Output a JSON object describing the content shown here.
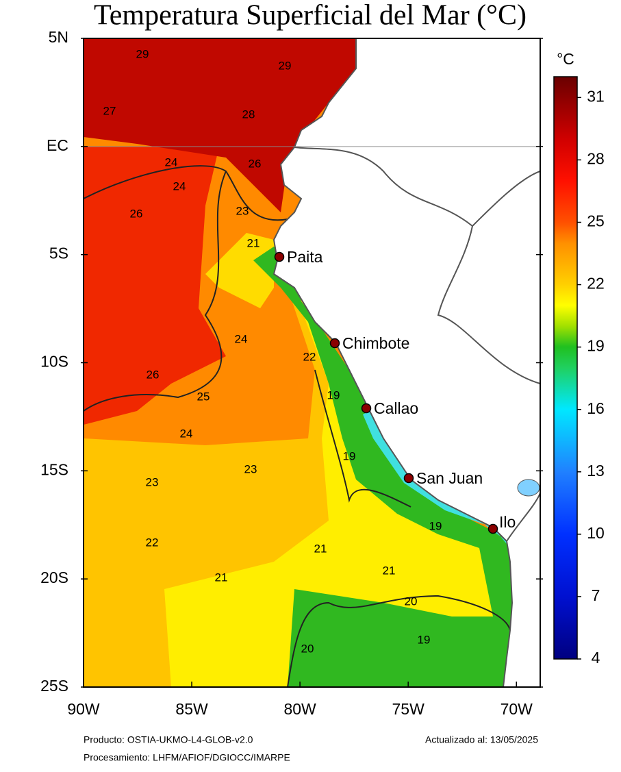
{
  "title": "Temperatura Superficial del Mar (°C)",
  "map": {
    "xlim": [
      -90,
      -68.9
    ],
    "ylim": [
      -25,
      5
    ],
    "xticks": [
      {
        "value": -90,
        "label": "90W"
      },
      {
        "value": -85,
        "label": "85W"
      },
      {
        "value": -80,
        "label": "80W"
      },
      {
        "value": -75,
        "label": "75W"
      },
      {
        "value": -70,
        "label": "70W"
      }
    ],
    "yticks": [
      {
        "value": 5,
        "label": "5N"
      },
      {
        "value": 0,
        "label": "EC"
      },
      {
        "value": -5,
        "label": "5S"
      },
      {
        "value": -10,
        "label": "10S"
      },
      {
        "value": -15,
        "label": "15S"
      },
      {
        "value": -20,
        "label": "20S"
      },
      {
        "value": -25,
        "label": "25S"
      }
    ],
    "cities": [
      "Paita",
      "Chimbote",
      "Callao",
      "San Juan",
      "Ilo"
    ],
    "contour_labels": [
      29,
      29,
      27,
      28,
      24,
      26,
      24,
      26,
      23,
      21,
      24,
      22,
      26,
      19,
      25,
      24,
      19,
      23,
      23,
      19,
      22,
      21,
      21,
      21,
      20,
      19,
      20
    ]
  },
  "colorbar": {
    "unit": "°C",
    "lim": [
      4,
      32
    ],
    "ticks": [
      31,
      28,
      25,
      22,
      19,
      16,
      13,
      10,
      7,
      4
    ]
  },
  "footer": {
    "product": "Producto: OSTIA-UKMO-L4-GLOB-v2.0",
    "updated": "Actualizado al: 13/05/2025",
    "processing": "Procesamiento: LHFM/AFIOF/DGIOCC/IMARPE"
  }
}
